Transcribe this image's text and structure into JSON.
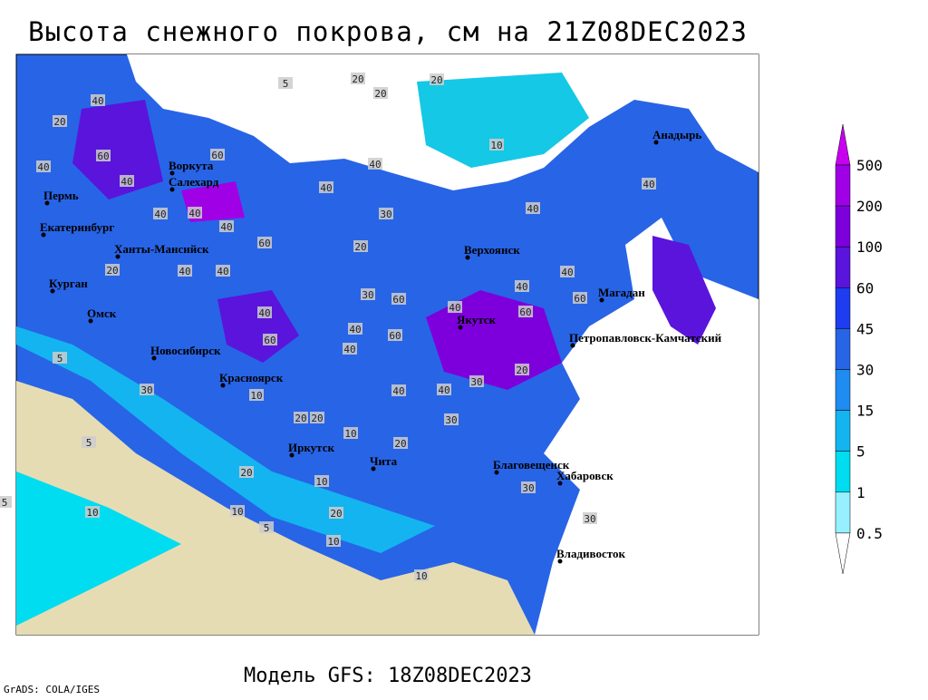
{
  "title": "Высота снежного покрова, см на 21Z08DEC2023",
  "subtitle": "Модель GFS: 18Z08DEC2023",
  "credit": "GrADS: COLA/IGES",
  "legend": {
    "levels": [
      500,
      200,
      100,
      60,
      45,
      30,
      15,
      5,
      1,
      0.5
    ],
    "colors": [
      "#c800f0",
      "#a000e6",
      "#7d00dc",
      "#5a14dc",
      "#1e3cf0",
      "#2864e6",
      "#1e8cf0",
      "#14b4f0",
      "#00dcf0",
      "#96f0ff",
      "#ffffff"
    ]
  },
  "cities": [
    "Воркута",
    "Салехард",
    "Пермь",
    "Екатеринбург",
    "Ханты-Мансийск",
    "Курган",
    "Омск",
    "Новосибирск",
    "Красноярск",
    "Иркутск",
    "Чита",
    "Верхоянск",
    "Якутск",
    "Магадан",
    "Петропавловск-Камчатский",
    "Анадырь",
    "Благовещенск",
    "Хабаровск",
    "Владивосток"
  ],
  "contour_labels": [
    20,
    20,
    20,
    5,
    40,
    20,
    10,
    40,
    60,
    60,
    40,
    40,
    40,
    30,
    40,
    40,
    40,
    40,
    60,
    40,
    20,
    20,
    40,
    40,
    30,
    60,
    40,
    40,
    60,
    60,
    40,
    60,
    60,
    40,
    40,
    40,
    20,
    30,
    40,
    30,
    40,
    20,
    10,
    10,
    20,
    20,
    20,
    30,
    5,
    10,
    10,
    5,
    5,
    10,
    20,
    30,
    5,
    10,
    30,
    10
  ]
}
